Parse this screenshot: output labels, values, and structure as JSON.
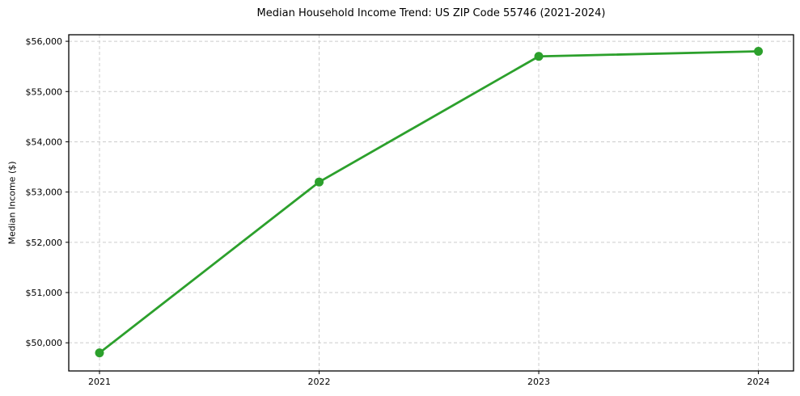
{
  "chart_data": {
    "type": "line",
    "title": "Median Household Income Trend: US ZIP Code 55746 (2021-2024)",
    "xlabel": "",
    "ylabel": "Median Income ($)",
    "x": [
      2021,
      2022,
      2023,
      2024
    ],
    "series": [
      {
        "name": "Median Household Income",
        "values": [
          49800,
          53200,
          55700,
          55800
        ]
      }
    ],
    "x_tick_labels": [
      "2021",
      "2022",
      "2023",
      "2024"
    ],
    "y_ticks": [
      50000,
      51000,
      52000,
      53000,
      54000,
      55000,
      56000
    ],
    "y_tick_labels": [
      "$50,000",
      "$51,000",
      "$52,000",
      "$53,000",
      "$54,000",
      "$55,000",
      "$56,000"
    ],
    "xlim": [
      2020.86,
      2024.16
    ],
    "ylim": [
      49440,
      56130
    ],
    "grid": true,
    "grid_style": "dashed",
    "legend": "none",
    "marker": "circle",
    "colors": {
      "line": "#2ca02c",
      "marker": "#2ca02c",
      "grid": "#cccccc",
      "spine": "#000000",
      "text": "#000000",
      "background": "#ffffff"
    }
  }
}
